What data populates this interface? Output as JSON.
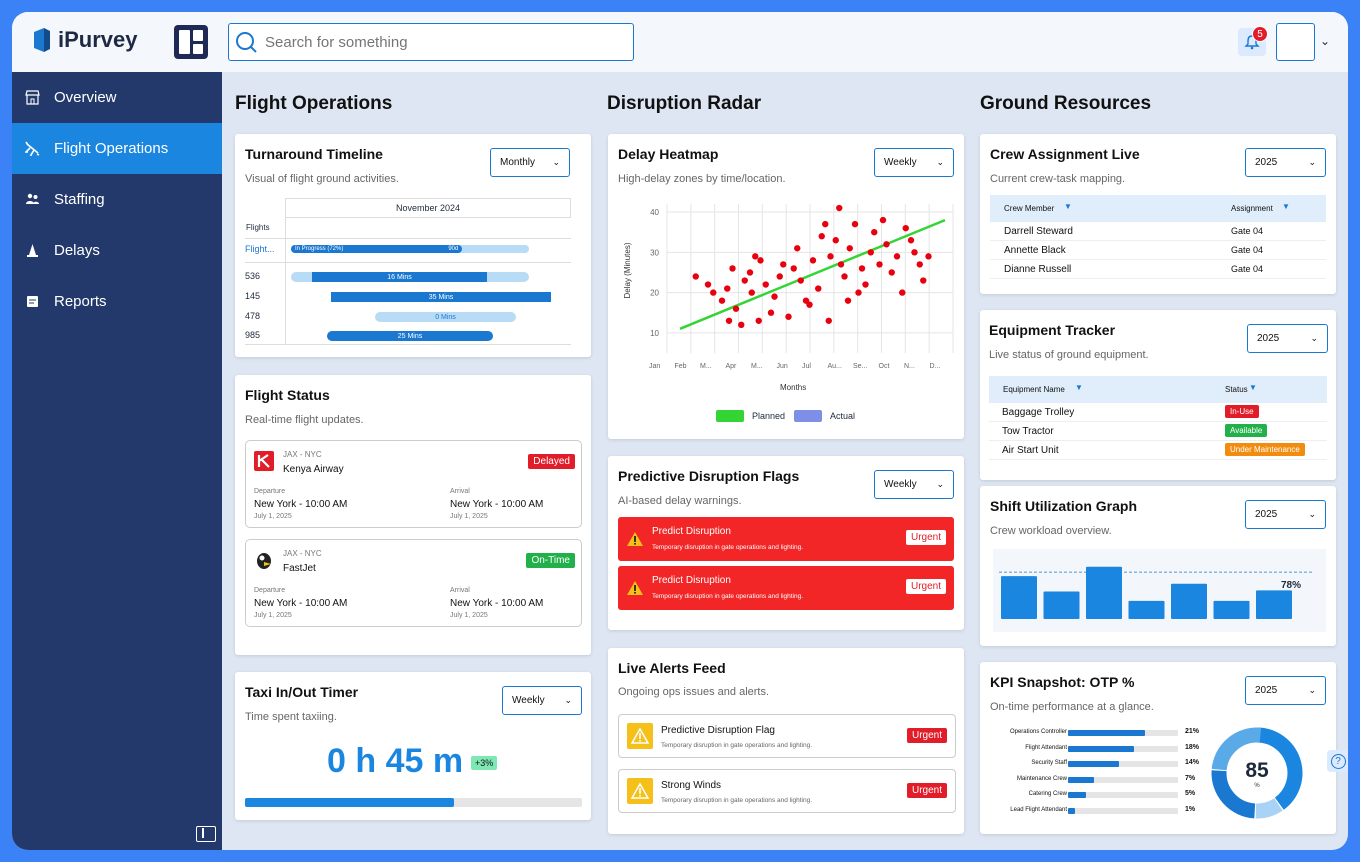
{
  "app": {
    "name": "iPurvey"
  },
  "header": {
    "search_placeholder": "Search for something",
    "notification_count": "5"
  },
  "sidebar": {
    "items": [
      {
        "label": "Overview",
        "icon": "store-icon"
      },
      {
        "label": "Flight Operations",
        "icon": "plane-icon",
        "active": true
      },
      {
        "label": "Staffing",
        "icon": "people-icon"
      },
      {
        "label": "Delays",
        "icon": "cone-icon"
      },
      {
        "label": "Reports",
        "icon": "report-icon"
      }
    ]
  },
  "sections": {
    "flight_ops": "Flight Operations",
    "disruption": "Disruption Radar",
    "ground": "Ground Resources"
  },
  "turnaround": {
    "title": "Turnaround Timeline",
    "subtitle": "Visual of flight ground activities.",
    "period": "Monthly",
    "month": "November 2024",
    "col_header": "Flights",
    "flight_label": "Flight...",
    "progress_label": "In Progress (72%)",
    "progress_value": "90d",
    "rows": [
      {
        "flight": "536",
        "label": "16 Mins"
      },
      {
        "flight": "145",
        "label": "35 Mins"
      },
      {
        "flight": "478",
        "label": "0 Mins"
      },
      {
        "flight": "985",
        "label": "25 Mins"
      }
    ]
  },
  "flight_status": {
    "title": "Flight Status",
    "subtitle": "Real-time flight updates.",
    "flights": [
      {
        "route": "JAX - NYC",
        "airline": "Kenya Airway",
        "status": "Delayed",
        "status_color": "#e11d2a",
        "dep_label": "Departure",
        "dep": "New York  -  10:00 AM",
        "dep_date": "July 1, 2025",
        "arr_label": "Arrival",
        "arr": "New York  -  10:00 AM",
        "arr_date": "July 1, 2025"
      },
      {
        "route": "JAX - NYC",
        "airline": "FastJet",
        "status": "On-Time",
        "status_color": "#22b04a",
        "dep_label": "Departure",
        "dep": "New York  -  10:00 AM",
        "dep_date": "July 1, 2025",
        "arr_label": "Arrival",
        "arr": "New York  -  10:00 AM",
        "arr_date": "July 1, 2025"
      }
    ]
  },
  "taxi": {
    "title": "Taxi In/Out Timer",
    "subtitle": "Time spent taxiing.",
    "period": "Weekly",
    "value": "0 h 45 m",
    "delta": "+3%",
    "progress": 0.62
  },
  "heatmap": {
    "title": "Delay Heatmap",
    "subtitle": "High-delay zones by time/location.",
    "period": "Weekly",
    "chart_data": {
      "type": "scatter",
      "xlabel": "Months",
      "ylabel": "Delay (Minutes)",
      "x_ticks": [
        "Jan",
        "Feb",
        "M...",
        "Apr",
        "M...",
        "Jun",
        "Jul",
        "Au...",
        "Se...",
        "Oct",
        "N...",
        "D..."
      ],
      "y_ticks": [
        "40",
        "30",
        "20",
        "10"
      ],
      "ylim": [
        5,
        42
      ],
      "series": [
        {
          "name": "Planned"
        },
        {
          "name": "Actual"
        }
      ],
      "colors": {
        "Planned": "#35d435",
        "Actual": "#7f8ee6",
        "points": "#e8000f"
      }
    }
  },
  "predictive": {
    "title": "Predictive Disruption Flags",
    "subtitle": "AI-based delay warnings.",
    "period": "Weekly",
    "flags": [
      {
        "title": "Predict Disruption",
        "desc": "Temporary disruption in gate operations and lighting.",
        "badge": "Urgent"
      },
      {
        "title": "Predict Disruption",
        "desc": "Temporary disruption in gate operations and lighting.",
        "badge": "Urgent"
      }
    ]
  },
  "alerts": {
    "title": "Live Alerts Feed",
    "subtitle": "Ongoing ops issues and alerts.",
    "items": [
      {
        "title": "Predictive Disruption Flag",
        "desc": "Temporary disruption in gate operations and lighting.",
        "badge": "Urgent"
      },
      {
        "title": "Strong Winds",
        "desc": "Temporary disruption in gate operations and lighting.",
        "badge": "Urgent"
      }
    ]
  },
  "crew": {
    "title": "Crew Assignment Live",
    "subtitle": "Current crew-task mapping.",
    "period": "2025",
    "col1": "Crew Member",
    "col2": "Assignment",
    "rows": [
      {
        "name": "Darrell Steward",
        "gate": "Gate 04"
      },
      {
        "name": "Annette Black",
        "gate": "Gate 04"
      },
      {
        "name": "Dianne Russell",
        "gate": "Gate 04"
      }
    ]
  },
  "equipment": {
    "title": "Equipment Tracker",
    "subtitle": "Live status of ground equipment.",
    "period": "2025",
    "col1": "Equipment Name",
    "col2": "Status",
    "rows": [
      {
        "name": "Baggage Trolley",
        "status": "In-Use",
        "color": "#e11d2a"
      },
      {
        "name": "Tow Tractor",
        "status": "Available",
        "color": "#22b04a"
      },
      {
        "name": "Air Start Unit",
        "status": "Under Maintenance",
        "color": "#f28c0f"
      }
    ]
  },
  "shift": {
    "title": "Shift Utilization Graph",
    "subtitle": "Crew workload overview.",
    "period": "2025",
    "chart_data": {
      "type": "bar",
      "values": [
        78,
        50,
        95,
        33,
        64,
        33,
        52
      ],
      "target_label": "78%",
      "target": 78,
      "ylim": [
        0,
        100
      ]
    }
  },
  "kpi": {
    "title": "KPI Snapshot: OTP %",
    "subtitle": "On-time performance at a glance.",
    "period": "2025",
    "center_value": "85",
    "center_unit": "%",
    "chart_data": {
      "type": "bar",
      "categories": [
        "Operations Controller",
        "Flight Attendant",
        "Security Staff",
        "Maintenance Crew",
        "Catering Crew",
        "Lead Flight Attendant"
      ],
      "values": [
        21,
        18,
        14,
        7,
        5,
        1
      ],
      "labels": [
        "21%",
        "18%",
        "14%",
        "7%",
        "5%",
        "1%"
      ]
    },
    "donut": {
      "values": [
        85,
        15
      ]
    }
  }
}
